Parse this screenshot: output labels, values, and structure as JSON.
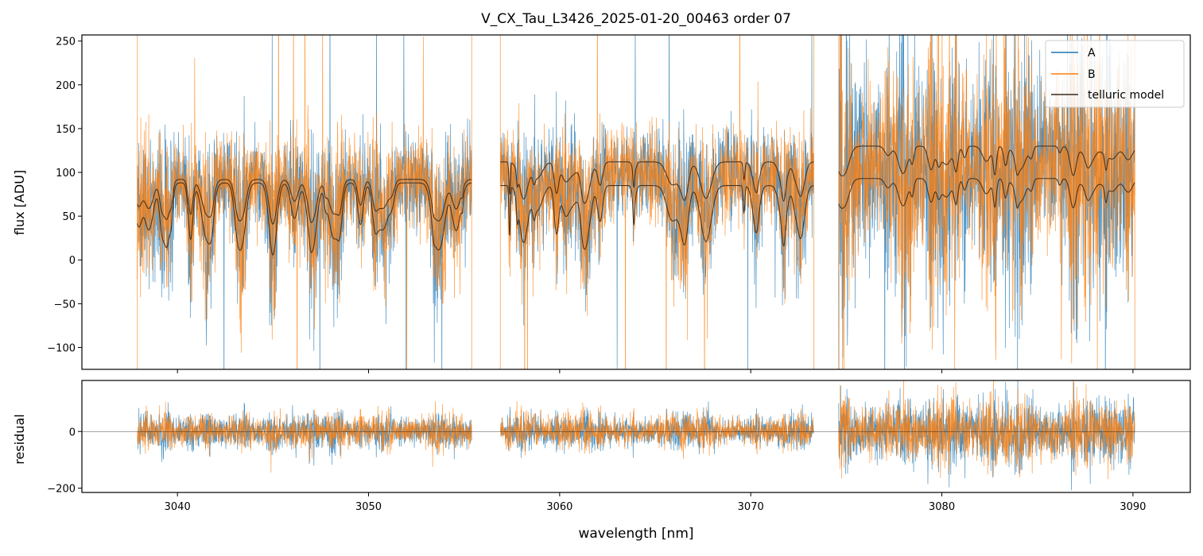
{
  "chart_data": {
    "type": "line",
    "title": "V_CX_Tau_L3426_2025-01-20_00463  order 07",
    "xlabel": "wavelength [nm]",
    "xlim": [
      3035,
      3093
    ],
    "x_ticks": [
      3040,
      3050,
      3060,
      3070,
      3080,
      3090
    ],
    "x_tick_labels": [
      "3040",
      "3050",
      "3060",
      "3070",
      "3080",
      "3090"
    ],
    "segments": [
      {
        "start": 3037.9,
        "end": 3055.4,
        "upper_base": 92,
        "upper_dip": 40,
        "lower_base": 88,
        "lower_dip": 4
      },
      {
        "start": 3056.9,
        "end": 3073.3,
        "upper_base": 112,
        "upper_dip": 62,
        "lower_base": 85,
        "lower_dip": 8
      },
      {
        "start": 3074.6,
        "end": 3090.1,
        "upper_base": 130,
        "upper_dip": 95,
        "lower_base": 93,
        "lower_dip": 58
      }
    ],
    "flux_panel": {
      "ylabel": "flux [ADU]",
      "ylim": [
        -125,
        257
      ],
      "y_ticks": [
        -100,
        -50,
        0,
        50,
        100,
        150,
        200,
        250
      ],
      "y_tick_labels": [
        "−100",
        "−50",
        "0",
        "50",
        "100",
        "150",
        "200",
        "250"
      ]
    },
    "residual_panel": {
      "ylabel": "residual",
      "ylim": [
        -215,
        180
      ],
      "y_ticks": [
        -200,
        0
      ],
      "y_tick_labels": [
        "−200",
        "0"
      ],
      "zero_line": 0
    },
    "series": [
      {
        "name": "A",
        "color": "#1f77b4",
        "kind": "noisy spectrum"
      },
      {
        "name": "B",
        "color": "#ff7f0e",
        "kind": "noisy spectrum"
      },
      {
        "name": "telluric model",
        "color": "#3a2a1c",
        "kind": "model"
      }
    ],
    "legend_location": "upper right"
  }
}
